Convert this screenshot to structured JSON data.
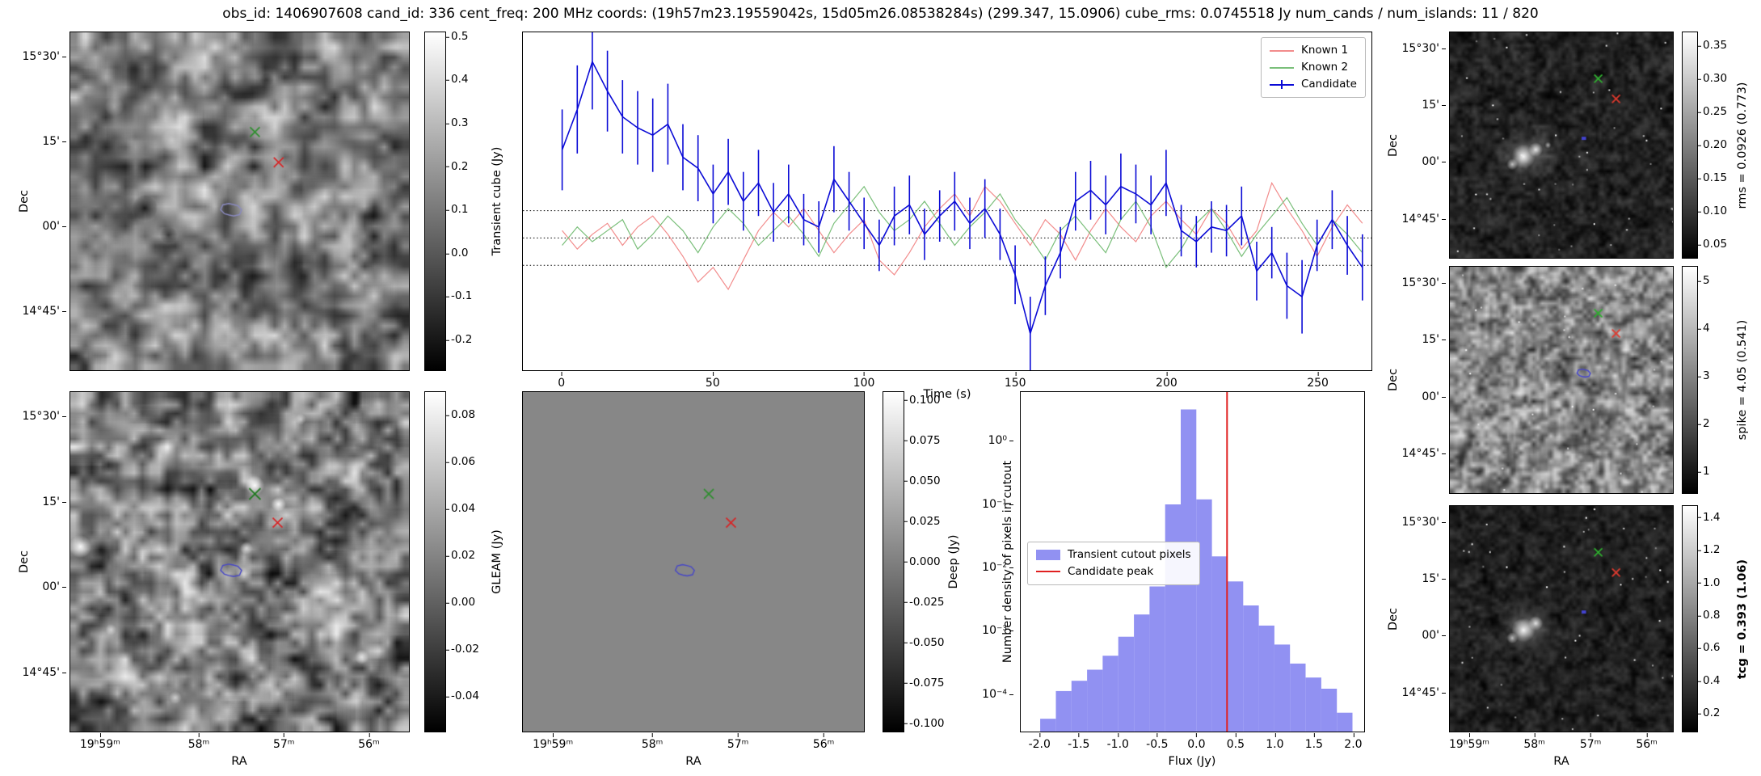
{
  "title": "obs_id: 1406907608 cand_id: 336 cent_freq: 200 MHz coords: (19h57m23.19559042s, 15d05m26.08538284s) (299.347, 15.0906) cube_rms: 0.0745518 Jy num_cands / num_islands: 11 / 820",
  "axes": {
    "dec_label": "Dec",
    "ra_label": "RA",
    "dec_ticks": [
      {
        "label": "15°30'",
        "f": 0.074
      },
      {
        "label": "15'",
        "f": 0.324
      },
      {
        "label": "00'",
        "f": 0.574
      },
      {
        "label": "14°45'",
        "f": 0.824
      }
    ],
    "ra_ticks": [
      {
        "label": "19ʰ59ᵐ",
        "f": 0.09
      },
      {
        "label": "58ᵐ",
        "f": 0.38
      },
      {
        "label": "57ᵐ",
        "f": 0.63
      },
      {
        "label": "56ᵐ",
        "f": 0.88
      }
    ]
  },
  "colorbars": {
    "transient": {
      "label": "Transient cube (Jy)",
      "vmin": -0.27,
      "vmax": 0.51,
      "ticks": [
        {
          "label": "0.5",
          "v": 0.5
        },
        {
          "label": "0.4",
          "v": 0.4
        },
        {
          "label": "0.3",
          "v": 0.3
        },
        {
          "label": "0.2",
          "v": 0.2
        },
        {
          "label": "0.1",
          "v": 0.1
        },
        {
          "label": "0.0",
          "v": 0.0
        },
        {
          "label": "-0.1",
          "v": -0.1
        },
        {
          "label": "-0.2",
          "v": -0.2
        }
      ]
    },
    "gleam": {
      "label": "GLEAM (Jy)",
      "vmin": -0.055,
      "vmax": 0.09,
      "ticks": [
        {
          "label": "0.08",
          "v": 0.08
        },
        {
          "label": "0.06",
          "v": 0.06
        },
        {
          "label": "0.04",
          "v": 0.04
        },
        {
          "label": "0.02",
          "v": 0.02
        },
        {
          "label": "0.00",
          "v": 0.0
        },
        {
          "label": "-0.02",
          "v": -0.02
        },
        {
          "label": "-0.04",
          "v": -0.04
        }
      ]
    },
    "deep": {
      "label": "Deep (Jy)",
      "vmin": -0.105,
      "vmax": 0.105,
      "ticks": [
        {
          "label": "0.100",
          "v": 0.1
        },
        {
          "label": "0.075",
          "v": 0.075
        },
        {
          "label": "0.050",
          "v": 0.05
        },
        {
          "label": "0.025",
          "v": 0.025
        },
        {
          "label": "0.000",
          "v": 0.0
        },
        {
          "label": "-0.025",
          "v": -0.025
        },
        {
          "label": "-0.050",
          "v": -0.05
        },
        {
          "label": "-0.075",
          "v": -0.075
        },
        {
          "label": "-0.100",
          "v": -0.1
        }
      ]
    },
    "rms": {
      "label": "rms = 0.0926 (0.773)",
      "vmin": 0.03,
      "vmax": 0.37,
      "ticks": [
        {
          "label": "0.35",
          "v": 0.35
        },
        {
          "label": "0.30",
          "v": 0.3
        },
        {
          "label": "0.25",
          "v": 0.25
        },
        {
          "label": "0.20",
          "v": 0.2
        },
        {
          "label": "0.15",
          "v": 0.15
        },
        {
          "label": "0.10",
          "v": 0.1
        },
        {
          "label": "0.05",
          "v": 0.05
        }
      ]
    },
    "spike": {
      "label": "spike = 4.05 (0.541)",
      "vmin": 0.55,
      "vmax": 5.3,
      "ticks": [
        {
          "label": "5",
          "v": 5
        },
        {
          "label": "4",
          "v": 4
        },
        {
          "label": "3",
          "v": 3
        },
        {
          "label": "2",
          "v": 2
        },
        {
          "label": "1",
          "v": 1
        }
      ]
    },
    "tcg": {
      "label": "tcg = 0.393 (1.06)",
      "vmin": 0.09,
      "vmax": 1.47,
      "ticks": [
        {
          "label": "1.4",
          "v": 1.4
        },
        {
          "label": "1.2",
          "v": 1.2
        },
        {
          "label": "1.0",
          "v": 1.0
        },
        {
          "label": "0.8",
          "v": 0.8
        },
        {
          "label": "0.6",
          "v": 0.6
        },
        {
          "label": "0.4",
          "v": 0.4
        },
        {
          "label": "0.2",
          "v": 0.2
        }
      ]
    }
  },
  "panels": {
    "transient": {
      "markers": [
        {
          "shape": "x",
          "color": "#2f8f2f",
          "size": 6,
          "fx": 0.545,
          "fy": 0.295
        },
        {
          "shape": "x",
          "color": "#d62728",
          "size": 6,
          "fx": 0.615,
          "fy": 0.385
        },
        {
          "shape": "contour",
          "color": "#8a8ac0",
          "size": 11,
          "fx": 0.475,
          "fy": 0.525
        }
      ]
    },
    "gleam": {
      "markers": [
        {
          "shape": "x",
          "color": "#1f7a1f",
          "size": 7,
          "fx": 0.545,
          "fy": 0.3
        },
        {
          "shape": "x",
          "color": "#d62728",
          "size": 6,
          "fx": 0.612,
          "fy": 0.385
        },
        {
          "shape": "contour",
          "color": "#4646c8",
          "size": 11,
          "fx": 0.475,
          "fy": 0.525
        }
      ]
    },
    "deep": {
      "markers": [
        {
          "shape": "x",
          "color": "#2f8f2f",
          "size": 6,
          "fx": 0.545,
          "fy": 0.3
        },
        {
          "shape": "x",
          "color": "#d62728",
          "size": 6,
          "fx": 0.61,
          "fy": 0.385
        },
        {
          "shape": "contour",
          "color": "#4646c8",
          "size": 10,
          "fx": 0.475,
          "fy": 0.525
        }
      ]
    },
    "rms": {
      "markers": [
        {
          "shape": "x",
          "color": "#2fae2f",
          "size": 5,
          "fx": 0.665,
          "fy": 0.205
        },
        {
          "shape": "x",
          "color": "#e03a2e",
          "size": 5,
          "fx": 0.745,
          "fy": 0.295
        },
        {
          "shape": "dot",
          "color": "#4343cf",
          "size": 4,
          "fx": 0.6,
          "fy": 0.47
        }
      ]
    },
    "spike": {
      "markers": [
        {
          "shape": "x",
          "color": "#2fae2f",
          "size": 5,
          "fx": 0.665,
          "fy": 0.205
        },
        {
          "shape": "x",
          "color": "#e03a2e",
          "size": 5,
          "fx": 0.745,
          "fy": 0.295
        },
        {
          "shape": "contour",
          "color": "#4343cf",
          "size": 7,
          "fx": 0.6,
          "fy": 0.47
        }
      ]
    },
    "tcg": {
      "markers": [
        {
          "shape": "x",
          "color": "#2fae2f",
          "size": 5,
          "fx": 0.665,
          "fy": 0.205
        },
        {
          "shape": "x",
          "color": "#e03a2e",
          "size": 5,
          "fx": 0.745,
          "fy": 0.295
        },
        {
          "shape": "dot",
          "color": "#4343cf",
          "size": 4,
          "fx": 0.6,
          "fy": 0.47
        }
      ]
    }
  },
  "chart_data": [
    {
      "id": "lightcurve",
      "type": "line",
      "xlabel": "Time (s)",
      "xlim": [
        -13,
        268
      ],
      "ylim": [
        -0.36,
        0.56
      ],
      "x_start": 0,
      "x_step": 5,
      "x_ticks": [
        {
          "label": "0",
          "v": 0
        },
        {
          "label": "50",
          "v": 50
        },
        {
          "label": "100",
          "v": 100
        },
        {
          "label": "150",
          "v": 150
        },
        {
          "label": "200",
          "v": 200
        },
        {
          "label": "250",
          "v": 250
        }
      ],
      "hlines": [
        0.0745518,
        0.0,
        -0.0745518
      ],
      "legend_position": "upper right",
      "series": [
        {
          "name": "Known 1",
          "color": "#f28c8c",
          "width": 1.2,
          "y": [
            0.02,
            -0.03,
            0.01,
            0.04,
            -0.02,
            0.03,
            0.06,
            0.01,
            -0.05,
            -0.12,
            -0.08,
            -0.14,
            -0.06,
            0.02,
            0.07,
            0.03,
            0.08,
            0.02,
            -0.04,
            0.01,
            0.05,
            -0.06,
            -0.1,
            -0.04,
            0.03,
            0.08,
            0.12,
            0.06,
            0.14,
            0.1,
            0.04,
            -0.02,
            0.05,
            0.01,
            -0.06,
            0.02,
            0.08,
            0.03,
            -0.01,
            0.06,
            0.1,
            0.05,
            0.01,
            0.08,
            0.04,
            -0.03,
            0.02,
            0.15,
            0.08,
            0.02,
            -0.05,
            0.03,
            0.09,
            0.04
          ]
        },
        {
          "name": "Known 2",
          "color": "#7abf7a",
          "width": 1.2,
          "y": [
            -0.02,
            0.03,
            -0.01,
            0.02,
            0.05,
            -0.03,
            0.01,
            0.06,
            0.02,
            -0.04,
            0.03,
            0.08,
            0.04,
            -0.02,
            0.02,
            0.06,
            0.01,
            -0.05,
            0.04,
            0.09,
            0.14,
            0.07,
            0.02,
            0.05,
            0.1,
            0.04,
            -0.02,
            0.03,
            0.07,
            0.12,
            0.05,
            0.0,
            -0.06,
            0.02,
            0.06,
            0.01,
            -0.04,
            0.05,
            0.1,
            0.03,
            -0.08,
            -0.03,
            0.04,
            0.08,
            0.02,
            -0.05,
            0.01,
            0.06,
            0.11,
            0.04,
            -0.02,
            0.05,
            0.01,
            -0.04
          ]
        },
        {
          "name": "Candidate",
          "color": "#0b0bd6",
          "width": 1.6,
          "y": [
            0.24,
            0.35,
            0.48,
            0.4,
            0.33,
            0.3,
            0.28,
            0.31,
            0.22,
            0.19,
            0.12,
            0.18,
            0.1,
            0.15,
            0.07,
            0.12,
            0.05,
            0.03,
            0.16,
            0.1,
            0.04,
            -0.02,
            0.06,
            0.09,
            0.01,
            0.06,
            0.1,
            0.04,
            0.08,
            0.01,
            -0.1,
            -0.26,
            -0.13,
            -0.04,
            0.1,
            0.13,
            0.09,
            0.14,
            0.12,
            0.09,
            0.15,
            0.02,
            -0.01,
            0.03,
            0.02,
            0.06,
            -0.09,
            -0.04,
            -0.13,
            -0.16,
            -0.02,
            0.05,
            -0.02,
            -0.08
          ],
          "yerr": [
            0.11,
            0.12,
            0.13,
            0.11,
            0.1,
            0.1,
            0.1,
            0.11,
            0.09,
            0.09,
            0.08,
            0.09,
            0.08,
            0.09,
            0.08,
            0.08,
            0.07,
            0.07,
            0.09,
            0.08,
            0.07,
            0.07,
            0.08,
            0.08,
            0.07,
            0.07,
            0.08,
            0.07,
            0.08,
            0.07,
            0.08,
            0.1,
            0.08,
            0.07,
            0.08,
            0.08,
            0.08,
            0.09,
            0.08,
            0.08,
            0.09,
            0.07,
            0.07,
            0.07,
            0.07,
            0.08,
            0.08,
            0.07,
            0.09,
            0.1,
            0.07,
            0.08,
            0.08,
            0.09
          ]
        }
      ]
    },
    {
      "id": "histogram",
      "type": "bar",
      "xlabel": "Flux (Jy)",
      "ylabel": "Number density of pixels in cutout",
      "yscale": "log",
      "xlim": [
        -2.25,
        2.15
      ],
      "ylog_range": [
        -4.6,
        0.78
      ],
      "x_ticks": [
        {
          "label": "-2.0",
          "v": -2.0
        },
        {
          "label": "-1.5",
          "v": -1.5
        },
        {
          "label": "-1.0",
          "v": -1.0
        },
        {
          "label": "-0.5",
          "v": -0.5
        },
        {
          "label": "0.0",
          "v": 0.0
        },
        {
          "label": "0.5",
          "v": 0.5
        },
        {
          "label": "1.0",
          "v": 1.0
        },
        {
          "label": "1.5",
          "v": 1.5
        },
        {
          "label": "2.0",
          "v": 2.0
        }
      ],
      "y_ticks": [
        {
          "label": "10⁰",
          "v": 1
        },
        {
          "label": "10⁻¹",
          "v": 0.1
        },
        {
          "label": "10⁻²",
          "v": 0.01
        },
        {
          "label": "10⁻³",
          "v": 0.001
        },
        {
          "label": "10⁻⁴",
          "v": 0.0001
        }
      ],
      "bin_start": -2.0,
      "bin_width": 0.2,
      "counts": [
        4e-05,
        0.00011,
        0.00016,
        0.00024,
        0.0004,
        0.0008,
        0.0018,
        0.005,
        0.1,
        3.2,
        0.12,
        0.015,
        0.006,
        0.0025,
        0.0012,
        0.0006,
        0.0003,
        0.00018,
        0.00012,
        5e-05
      ],
      "bar_color": "#7e7ef0",
      "vline": {
        "v": 0.393,
        "color": "#e02020"
      },
      "legend": [
        {
          "label": "Transient cutout pixels",
          "type": "patch"
        },
        {
          "label": "Candidate peak",
          "type": "line"
        }
      ]
    }
  ]
}
